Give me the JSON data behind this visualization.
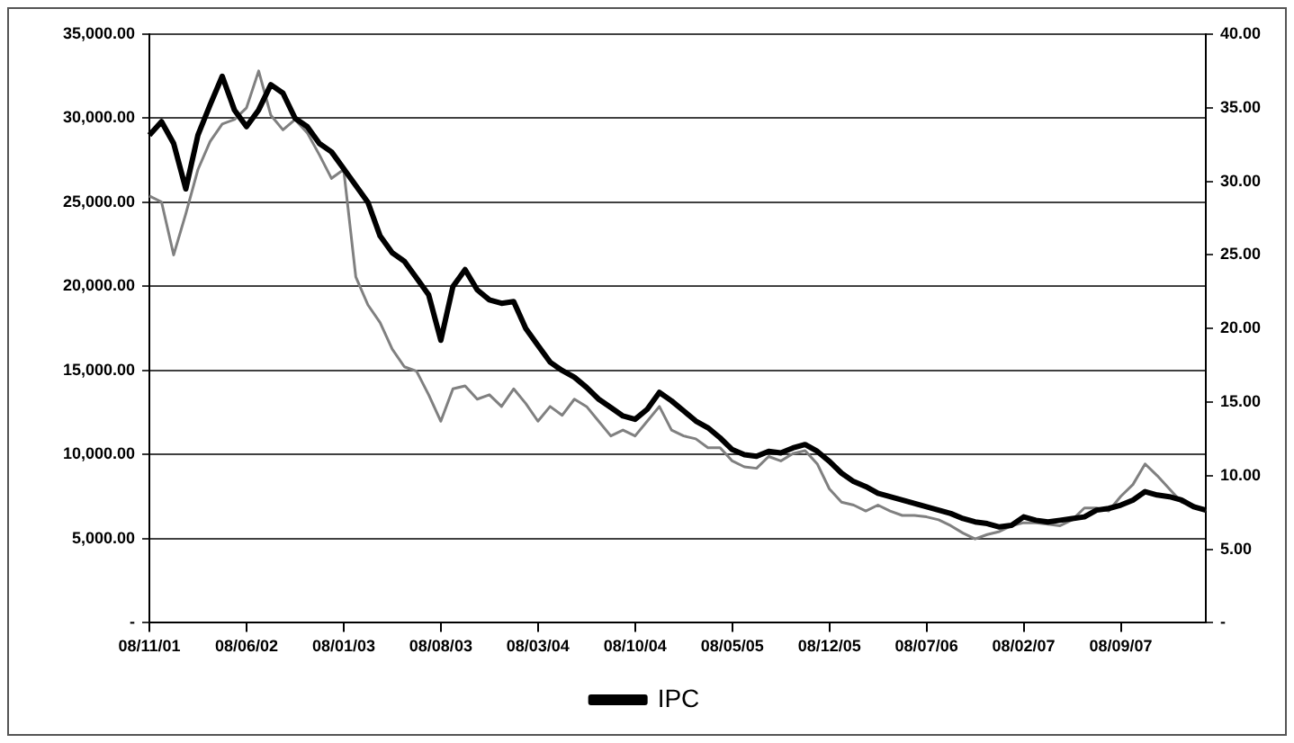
{
  "chart_data": {
    "type": "line",
    "categories": [
      "08/11/01",
      null,
      null,
      null,
      null,
      null,
      null,
      null,
      "08/06/02",
      null,
      null,
      null,
      null,
      null,
      null,
      null,
      "08/01/03",
      null,
      null,
      null,
      null,
      null,
      null,
      null,
      "08/08/03",
      null,
      null,
      null,
      null,
      null,
      null,
      null,
      "08/03/04",
      null,
      null,
      null,
      null,
      null,
      null,
      null,
      "08/10/04",
      null,
      null,
      null,
      null,
      null,
      null,
      null,
      "08/05/05",
      null,
      null,
      null,
      null,
      null,
      null,
      null,
      "08/12/05",
      null,
      null,
      null,
      null,
      null,
      null,
      null,
      "08/07/06",
      null,
      null,
      null,
      null,
      null,
      null,
      null,
      "08/02/07",
      null,
      null,
      null,
      null,
      null,
      null,
      null,
      "08/09/07",
      null,
      null,
      null,
      null,
      null,
      null,
      null
    ],
    "series": [
      {
        "name": "IPC",
        "color": "#000000",
        "values": [
          29000,
          29800,
          28500,
          25800,
          29000,
          30800,
          32500,
          30500,
          29500,
          30500,
          32000,
          31500,
          30000,
          29500,
          28500,
          28000,
          27000,
          26000,
          25000,
          23000,
          22000,
          21500,
          20500,
          19500,
          16800,
          20000,
          21000,
          19800,
          19200,
          19000,
          19100,
          17500,
          16500,
          15500,
          15000,
          14600,
          14000,
          13300,
          12800,
          12300,
          12100,
          12700,
          13700,
          13200,
          12600,
          12000,
          11600,
          11000,
          10300,
          10000,
          9900,
          10200,
          10100,
          10400,
          10600,
          10200,
          9600,
          8900,
          8400,
          8100,
          7700,
          7500,
          7300,
          7100,
          6900,
          6700,
          6500,
          6200,
          6000,
          5900,
          5700,
          5800,
          6300,
          6100,
          6000,
          6100,
          6200,
          6300,
          6700,
          6800,
          7000,
          7300,
          7800,
          7600,
          7500,
          7300,
          6900,
          6700
        ]
      },
      {
        "color": "#808080",
        "axis": "y2",
        "values": [
          29.0,
          28.6,
          25.0,
          27.8,
          30.8,
          32.7,
          33.9,
          34.2,
          35.0,
          37.5,
          34.5,
          33.5,
          34.2,
          33.3,
          31.8,
          30.2,
          30.8,
          23.5,
          21.6,
          20.4,
          18.6,
          17.4,
          17.1,
          15.5,
          13.7,
          15.9,
          16.1,
          15.2,
          15.5,
          14.7,
          15.9,
          14.9,
          13.7,
          14.7,
          14.1,
          15.2,
          14.7,
          13.7,
          12.7,
          13.1,
          12.7,
          13.7,
          14.7,
          13.1,
          12.7,
          12.5,
          11.9,
          11.9,
          11.0,
          10.6,
          10.5,
          11.3,
          11.0,
          11.5,
          11.7,
          10.8,
          9.1,
          8.2,
          8.0,
          7.6,
          8.0,
          7.6,
          7.3,
          7.3,
          7.2,
          7.0,
          6.6,
          6.1,
          5.7,
          6.0,
          6.2,
          6.6,
          6.8,
          6.8,
          6.7,
          6.6,
          7.0,
          7.8,
          7.8,
          7.6,
          8.6,
          9.4,
          10.8,
          10.0,
          9.1,
          8.2,
          8.0,
          7.6
        ]
      }
    ],
    "ylim": [
      0,
      35000
    ],
    "yticks": [
      {
        "value": 0,
        "label": "-"
      },
      {
        "value": 5000,
        "label": "5,000.00"
      },
      {
        "value": 10000,
        "label": "10,000.00"
      },
      {
        "value": 15000,
        "label": "15,000.00"
      },
      {
        "value": 20000,
        "label": "20,000.00"
      },
      {
        "value": 25000,
        "label": "25,000.00"
      },
      {
        "value": 30000,
        "label": "30,000.00"
      },
      {
        "value": 35000,
        "label": "35,000.00"
      }
    ],
    "y2lim": [
      0,
      40
    ],
    "y2ticks": [
      {
        "value": 0,
        "label": "-"
      },
      {
        "value": 5,
        "label": "5.00"
      },
      {
        "value": 10,
        "label": "10.00"
      },
      {
        "value": 15,
        "label": "15.00"
      },
      {
        "value": 20,
        "label": "20.00"
      },
      {
        "value": 25,
        "label": "25.00"
      },
      {
        "value": 30,
        "label": "30.00"
      },
      {
        "value": 35,
        "label": "35.00"
      },
      {
        "value": 40,
        "label": "40.00"
      }
    ],
    "grid": "y",
    "legend": "bottom",
    "marker": "none",
    "line_style": "solid"
  }
}
